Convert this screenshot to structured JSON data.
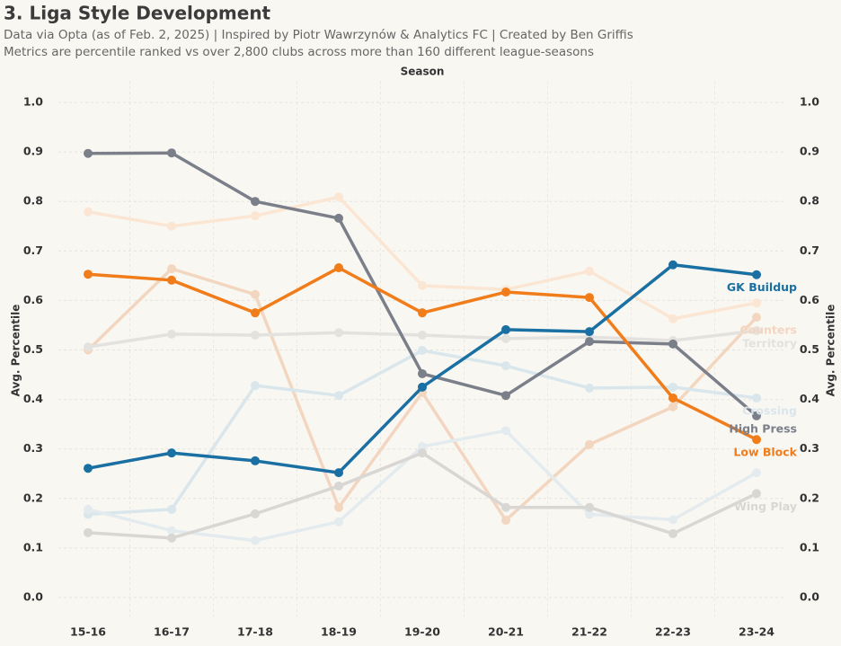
{
  "chart_data": {
    "type": "line",
    "title": "3. Liga Style Development",
    "subtitle": [
      "Data via Opta (as of Feb. 2, 2025) | Inspired by Piotr Wawrzynów & Analytics FC | Created by Ben Griffis",
      "Metrics are percentile ranked vs over 2,800 clubs across more than 160 different league-seasons"
    ],
    "x_label": "Season",
    "y_label": "Avg. Percentile",
    "categories": [
      "15-16",
      "16-17",
      "17-18",
      "18-19",
      "19-20",
      "20-21",
      "21-22",
      "22-23",
      "23-24"
    ],
    "ylim": [
      0,
      1
    ],
    "yticks": [
      {
        "value": 0,
        "label": "0.0"
      },
      0.1,
      0.2,
      0.3,
      0.4,
      0.5,
      0.6,
      0.7,
      0.8,
      0.9,
      {
        "value": 1,
        "label": "1.0"
      }
    ],
    "grid": true,
    "series": [
      {
        "color": "#fbe6d3",
        "values": [
          0.779,
          0.75,
          0.771,
          0.809,
          0.63,
          0.622,
          0.659,
          0.563,
          0.595
        ]
      },
      {
        "name": "Counters",
        "color": "#f2d6c0",
        "values": [
          0.5,
          0.664,
          0.612,
          0.182,
          0.414,
          0.156,
          0.309,
          0.385,
          0.566
        ]
      },
      {
        "name": "Territory",
        "color": "#e4e2df",
        "values": [
          0.506,
          0.532,
          0.53,
          0.535,
          0.53,
          0.523,
          0.526,
          0.519,
          0.539
        ]
      },
      {
        "name": "Crossing",
        "color": "#d9e6ec",
        "values": [
          0.168,
          0.178,
          0.428,
          0.408,
          0.499,
          0.468,
          0.423,
          0.425,
          0.403
        ]
      },
      {
        "color": "#e3ebef",
        "values": [
          0.178,
          0.135,
          0.115,
          0.153,
          0.305,
          0.337,
          0.168,
          0.157,
          0.252
        ]
      },
      {
        "name": "Wing Play",
        "color": "#d9d7d4",
        "values": [
          0.131,
          0.12,
          0.169,
          0.225,
          0.292,
          0.182,
          0.182,
          0.129,
          0.21
        ]
      },
      {
        "name": "High Press",
        "color": "#7a7f8a",
        "values": [
          0.897,
          0.898,
          0.8,
          0.766,
          0.452,
          0.408,
          0.517,
          0.512,
          0.367
        ]
      },
      {
        "name": "Low Block",
        "color": "#f07c1a",
        "values": [
          0.653,
          0.641,
          0.575,
          0.666,
          0.575,
          0.617,
          0.606,
          0.403,
          0.319
        ]
      },
      {
        "name": "GK Buildup",
        "color": "#1a6fa3",
        "values": [
          0.261,
          0.292,
          0.276,
          0.252,
          0.425,
          0.541,
          0.537,
          0.672,
          0.652
        ]
      }
    ]
  }
}
